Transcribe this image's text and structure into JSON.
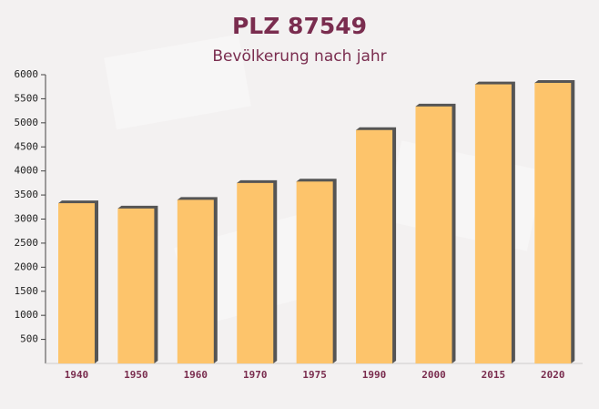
{
  "chart_data": {
    "type": "bar",
    "title": "PLZ 87549",
    "subtitle": "Bevölkerung nach jahr",
    "categories": [
      "1940",
      "1950",
      "1960",
      "1970",
      "1975",
      "1990",
      "2000",
      "2015",
      "2020"
    ],
    "values": [
      3330,
      3220,
      3400,
      3750,
      3780,
      4850,
      5340,
      5800,
      5830
    ],
    "color": "#fdc46b",
    "ylim": [
      0,
      6000
    ],
    "yticks": [
      500,
      1000,
      1500,
      2000,
      2500,
      3000,
      3500,
      4000,
      4500,
      5000,
      5500,
      6000
    ],
    "grid": false
  }
}
